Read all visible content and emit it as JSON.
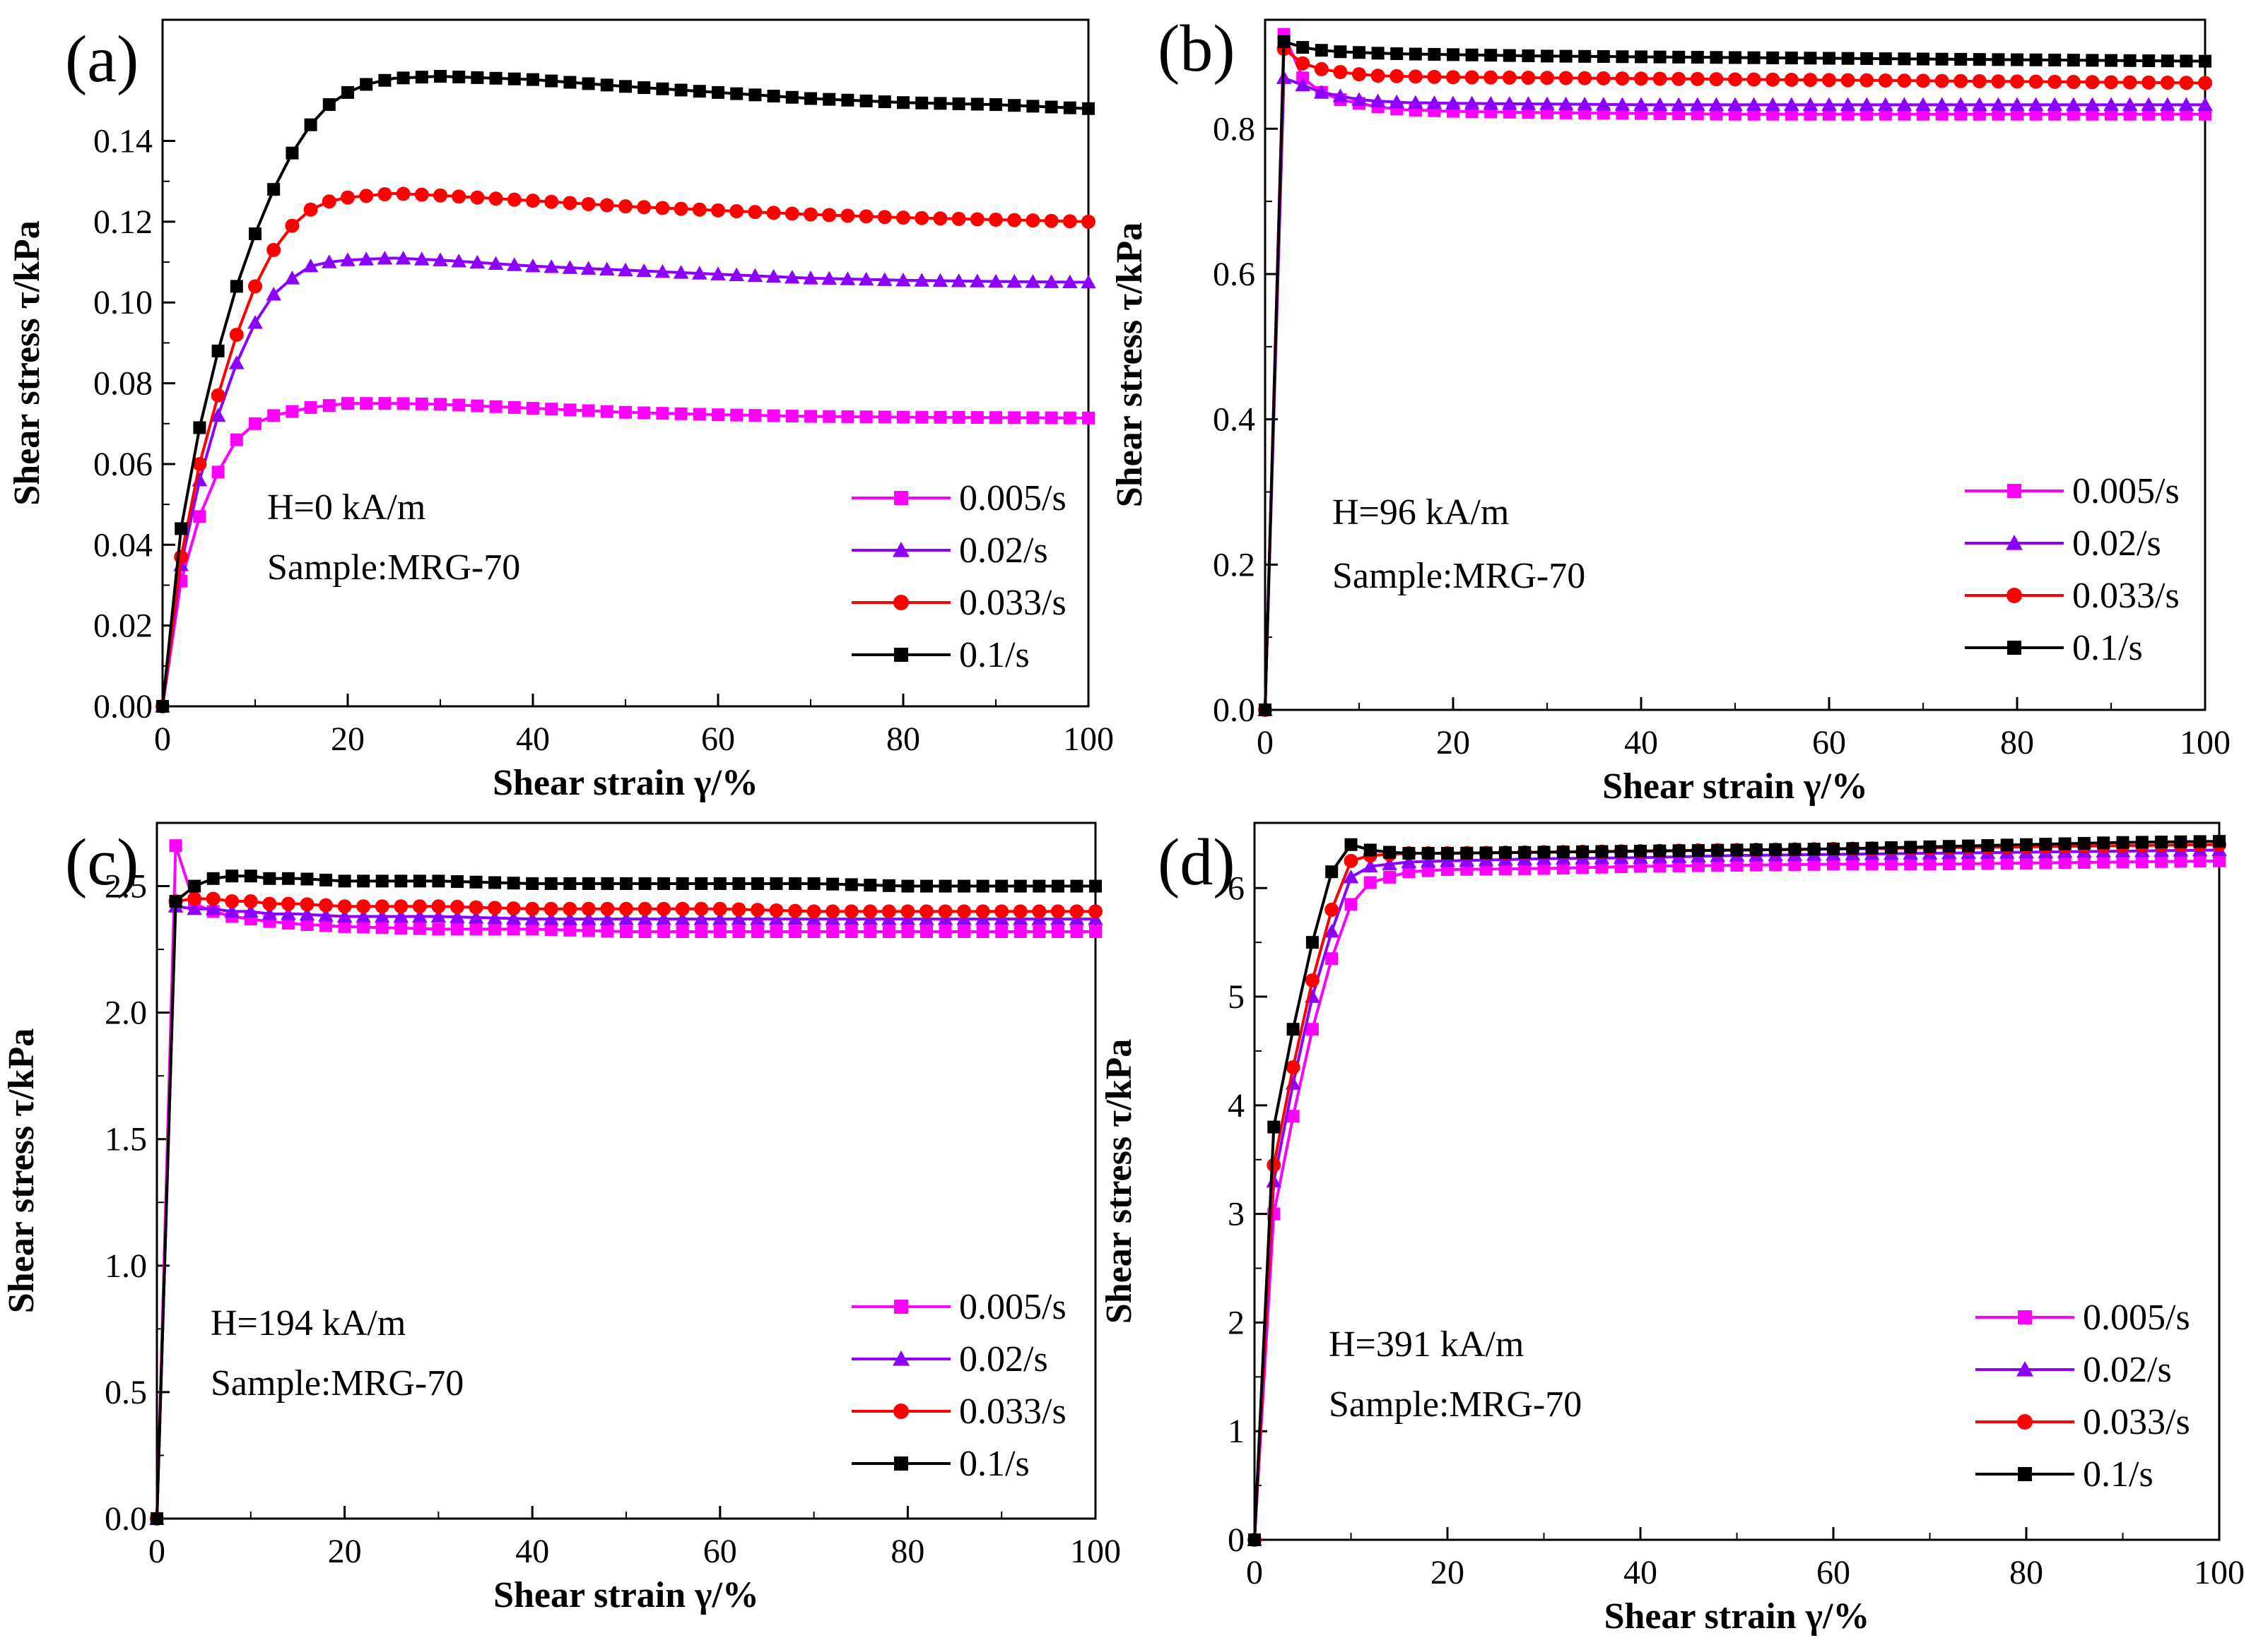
{
  "chart_data": [
    {
      "type": "line",
      "panel_label": "(a)",
      "annotations": [
        "H=0 kA/m",
        "Sample:MRG-70"
      ],
      "xlabel": "Shear strain γ/%",
      "ylabel": "Shear stress τ/kPa",
      "xlim": [
        0,
        100
      ],
      "ylim": [
        0,
        0.17
      ],
      "xticks": [
        0,
        20,
        40,
        60,
        80,
        100
      ],
      "yticks": [
        0,
        0.02,
        0.04,
        0.06,
        0.08,
        0.1,
        0.12,
        0.14
      ],
      "ytick_labels": [
        "0.00",
        "0.02",
        "0.04",
        "0.06",
        "0.08",
        "0.10",
        "0.12",
        "0.14"
      ],
      "series": [
        {
          "name": "0.005/s",
          "color": "#FF00FF",
          "marker": "square",
          "x": [
            0,
            2,
            4,
            6,
            8,
            10,
            12,
            14,
            16,
            18,
            20,
            25,
            30,
            40,
            50,
            60,
            70,
            80,
            90,
            100
          ],
          "y": [
            0,
            0.031,
            0.047,
            0.058,
            0.066,
            0.07,
            0.072,
            0.073,
            0.074,
            0.0745,
            0.075,
            0.075,
            0.0748,
            0.0738,
            0.0728,
            0.0722,
            0.0718,
            0.0716,
            0.0715,
            0.0714
          ]
        },
        {
          "name": "0.02/s",
          "color": "#8B00FF",
          "marker": "triangle",
          "x": [
            0,
            2,
            4,
            6,
            8,
            10,
            12,
            14,
            16,
            18,
            20,
            25,
            30,
            40,
            50,
            60,
            70,
            80,
            90,
            100
          ],
          "y": [
            0,
            0.035,
            0.056,
            0.072,
            0.085,
            0.095,
            0.102,
            0.106,
            0.109,
            0.11,
            0.1105,
            0.111,
            0.1105,
            0.109,
            0.108,
            0.107,
            0.106,
            0.1055,
            0.1052,
            0.105
          ]
        },
        {
          "name": "0.033/s",
          "color": "#FF0000",
          "marker": "circle",
          "x": [
            0,
            2,
            4,
            6,
            8,
            10,
            12,
            14,
            16,
            18,
            20,
            25,
            30,
            40,
            50,
            60,
            70,
            80,
            90,
            100
          ],
          "y": [
            0,
            0.037,
            0.06,
            0.077,
            0.092,
            0.104,
            0.113,
            0.119,
            0.123,
            0.125,
            0.126,
            0.127,
            0.1265,
            0.1252,
            0.1238,
            0.1228,
            0.1218,
            0.121,
            0.1205,
            0.12
          ]
        },
        {
          "name": "0.1/s",
          "color": "#000000",
          "marker": "square",
          "x": [
            0,
            2,
            4,
            6,
            8,
            10,
            12,
            14,
            16,
            18,
            20,
            22,
            25,
            30,
            40,
            50,
            60,
            70,
            80,
            90,
            100
          ],
          "y": [
            0,
            0.044,
            0.069,
            0.088,
            0.104,
            0.117,
            0.128,
            0.137,
            0.144,
            0.149,
            0.152,
            0.154,
            0.1555,
            0.156,
            0.1552,
            0.1535,
            0.152,
            0.1505,
            0.1495,
            0.149,
            0.148
          ]
        }
      ],
      "legend": "lower-right"
    },
    {
      "type": "line",
      "panel_label": "(b)",
      "annotations": [
        "H=96 kA/m",
        "Sample:MRG-70"
      ],
      "xlabel": "Shear strain γ/%",
      "ylabel": "Shear stress τ/kPa",
      "xlim": [
        0,
        100
      ],
      "ylim": [
        0,
        0.95
      ],
      "xticks": [
        0,
        20,
        40,
        60,
        80,
        100
      ],
      "yticks": [
        0,
        0.2,
        0.4,
        0.6,
        0.8
      ],
      "ytick_labels": [
        "0.0",
        "0.2",
        "0.4",
        "0.6",
        "0.8"
      ],
      "series": [
        {
          "name": "0.005/s",
          "color": "#FF00FF",
          "marker": "square",
          "x": [
            0,
            2,
            4,
            6,
            8,
            10,
            12,
            15,
            20,
            30,
            40,
            50,
            60,
            70,
            80,
            90,
            100
          ],
          "y": [
            0,
            0.93,
            0.87,
            0.85,
            0.84,
            0.835,
            0.83,
            0.826,
            0.824,
            0.822,
            0.821,
            0.82,
            0.82,
            0.82,
            0.82,
            0.82,
            0.82
          ]
        },
        {
          "name": "0.02/s",
          "color": "#8B00FF",
          "marker": "triangle",
          "x": [
            0,
            2,
            4,
            6,
            8,
            10,
            12,
            15,
            20,
            30,
            40,
            50,
            60,
            70,
            80,
            90,
            100
          ],
          "y": [
            0,
            0.87,
            0.86,
            0.85,
            0.845,
            0.84,
            0.838,
            0.836,
            0.835,
            0.834,
            0.833,
            0.833,
            0.833,
            0.833,
            0.833,
            0.833,
            0.833
          ]
        },
        {
          "name": "0.033/s",
          "color": "#FF0000",
          "marker": "circle",
          "x": [
            0,
            2,
            4,
            6,
            8,
            10,
            12,
            15,
            20,
            30,
            40,
            50,
            60,
            70,
            80,
            90,
            100
          ],
          "y": [
            0,
            0.91,
            0.89,
            0.882,
            0.878,
            0.875,
            0.873,
            0.872,
            0.871,
            0.87,
            0.869,
            0.868,
            0.867,
            0.866,
            0.865,
            0.864,
            0.863
          ]
        },
        {
          "name": "0.1/s",
          "color": "#000000",
          "marker": "square",
          "x": [
            0,
            2,
            4,
            6,
            8,
            10,
            12,
            15,
            20,
            30,
            40,
            50,
            60,
            70,
            80,
            90,
            100
          ],
          "y": [
            0,
            0.92,
            0.912,
            0.908,
            0.906,
            0.905,
            0.904,
            0.903,
            0.902,
            0.9,
            0.899,
            0.898,
            0.897,
            0.896,
            0.895,
            0.894,
            0.893
          ]
        }
      ],
      "legend": "lower-right"
    },
    {
      "type": "line",
      "panel_label": "(c)",
      "annotations": [
        "H=194 kA/m",
        "Sample:MRG-70"
      ],
      "xlabel": "Shear strain γ/%",
      "ylabel": "Shear stress τ/kPa",
      "xlim": [
        0,
        100
      ],
      "ylim": [
        0,
        2.75
      ],
      "xticks": [
        0,
        20,
        40,
        60,
        80,
        100
      ],
      "yticks": [
        0,
        0.5,
        1.0,
        1.5,
        2.0,
        2.5
      ],
      "ytick_labels": [
        "0.0",
        "0.5",
        "1.0",
        "1.5",
        "2.0",
        "2.5"
      ],
      "series": [
        {
          "name": "0.005/s",
          "color": "#FF00FF",
          "marker": "square",
          "x": [
            0,
            2,
            4,
            6,
            8,
            10,
            12,
            15,
            20,
            30,
            40,
            50,
            60,
            70,
            80,
            90,
            100
          ],
          "y": [
            0,
            2.66,
            2.43,
            2.4,
            2.38,
            2.37,
            2.36,
            2.35,
            2.34,
            2.33,
            2.33,
            2.32,
            2.32,
            2.32,
            2.32,
            2.32,
            2.32
          ]
        },
        {
          "name": "0.02/s",
          "color": "#8B00FF",
          "marker": "triangle",
          "x": [
            0,
            2,
            4,
            6,
            8,
            10,
            12,
            15,
            20,
            30,
            40,
            50,
            60,
            70,
            80,
            90,
            100
          ],
          "y": [
            0,
            2.42,
            2.41,
            2.41,
            2.4,
            2.4,
            2.39,
            2.39,
            2.38,
            2.38,
            2.37,
            2.37,
            2.37,
            2.37,
            2.37,
            2.37,
            2.37
          ]
        },
        {
          "name": "0.033/s",
          "color": "#FF0000",
          "marker": "circle",
          "x": [
            0,
            2,
            4,
            6,
            8,
            10,
            12,
            15,
            20,
            30,
            40,
            50,
            60,
            70,
            80,
            90,
            100
          ],
          "y": [
            0,
            2.44,
            2.45,
            2.45,
            2.44,
            2.44,
            2.43,
            2.43,
            2.42,
            2.42,
            2.41,
            2.41,
            2.41,
            2.4,
            2.4,
            2.4,
            2.4
          ]
        },
        {
          "name": "0.1/s",
          "color": "#000000",
          "marker": "square",
          "x": [
            0,
            2,
            4,
            6,
            8,
            10,
            12,
            15,
            20,
            30,
            40,
            50,
            60,
            70,
            80,
            90,
            100
          ],
          "y": [
            0,
            2.44,
            2.5,
            2.53,
            2.54,
            2.54,
            2.53,
            2.53,
            2.52,
            2.52,
            2.51,
            2.51,
            2.51,
            2.51,
            2.5,
            2.5,
            2.5
          ]
        }
      ],
      "legend": "lower-right"
    },
    {
      "type": "line",
      "panel_label": "(d)",
      "annotations": [
        "H=391 kA/m",
        "Sample:MRG-70"
      ],
      "xlabel": "Shear strain γ/%",
      "ylabel": "Shear stress τ/kPa",
      "xlim": [
        0,
        100
      ],
      "ylim": [
        0,
        6.6
      ],
      "xticks": [
        0,
        20,
        40,
        60,
        80,
        100
      ],
      "yticks": [
        0,
        1,
        2,
        3,
        4,
        5,
        6
      ],
      "ytick_labels": [
        "0",
        "1",
        "2",
        "3",
        "4",
        "5",
        "6"
      ],
      "series": [
        {
          "name": "0.005/s",
          "color": "#FF00FF",
          "marker": "square",
          "x": [
            0,
            2,
            4,
            6,
            8,
            10,
            12,
            14,
            16,
            20,
            30,
            40,
            50,
            60,
            70,
            80,
            90,
            100
          ],
          "y": [
            0,
            3.0,
            3.9,
            4.7,
            5.35,
            5.85,
            6.05,
            6.1,
            6.15,
            6.17,
            6.18,
            6.2,
            6.21,
            6.22,
            6.22,
            6.23,
            6.24,
            6.25
          ]
        },
        {
          "name": "0.02/s",
          "color": "#8B00FF",
          "marker": "triangle",
          "x": [
            0,
            2,
            4,
            6,
            8,
            10,
            12,
            14,
            16,
            20,
            30,
            40,
            50,
            60,
            70,
            80,
            90,
            100
          ],
          "y": [
            0,
            3.3,
            4.2,
            5.0,
            5.6,
            6.1,
            6.2,
            6.22,
            6.24,
            6.25,
            6.27,
            6.28,
            6.3,
            6.31,
            6.32,
            6.33,
            6.34,
            6.35
          ]
        },
        {
          "name": "0.033/s",
          "color": "#FF0000",
          "marker": "circle",
          "x": [
            0,
            2,
            4,
            6,
            8,
            10,
            12,
            14,
            16,
            20,
            30,
            40,
            50,
            60,
            70,
            80,
            90,
            100
          ],
          "y": [
            0,
            3.45,
            4.35,
            5.15,
            5.8,
            6.25,
            6.3,
            6.31,
            6.32,
            6.32,
            6.33,
            6.34,
            6.35,
            6.36,
            6.37,
            6.38,
            6.39,
            6.4
          ]
        },
        {
          "name": "0.1/s",
          "color": "#000000",
          "marker": "square",
          "x": [
            0,
            2,
            4,
            6,
            8,
            10,
            12,
            14,
            16,
            20,
            30,
            40,
            50,
            60,
            70,
            80,
            90,
            100
          ],
          "y": [
            0,
            3.8,
            4.7,
            5.5,
            6.15,
            6.4,
            6.35,
            6.33,
            6.32,
            6.32,
            6.33,
            6.34,
            6.35,
            6.36,
            6.38,
            6.4,
            6.42,
            6.43
          ]
        }
      ],
      "legend": "lower-right"
    }
  ]
}
